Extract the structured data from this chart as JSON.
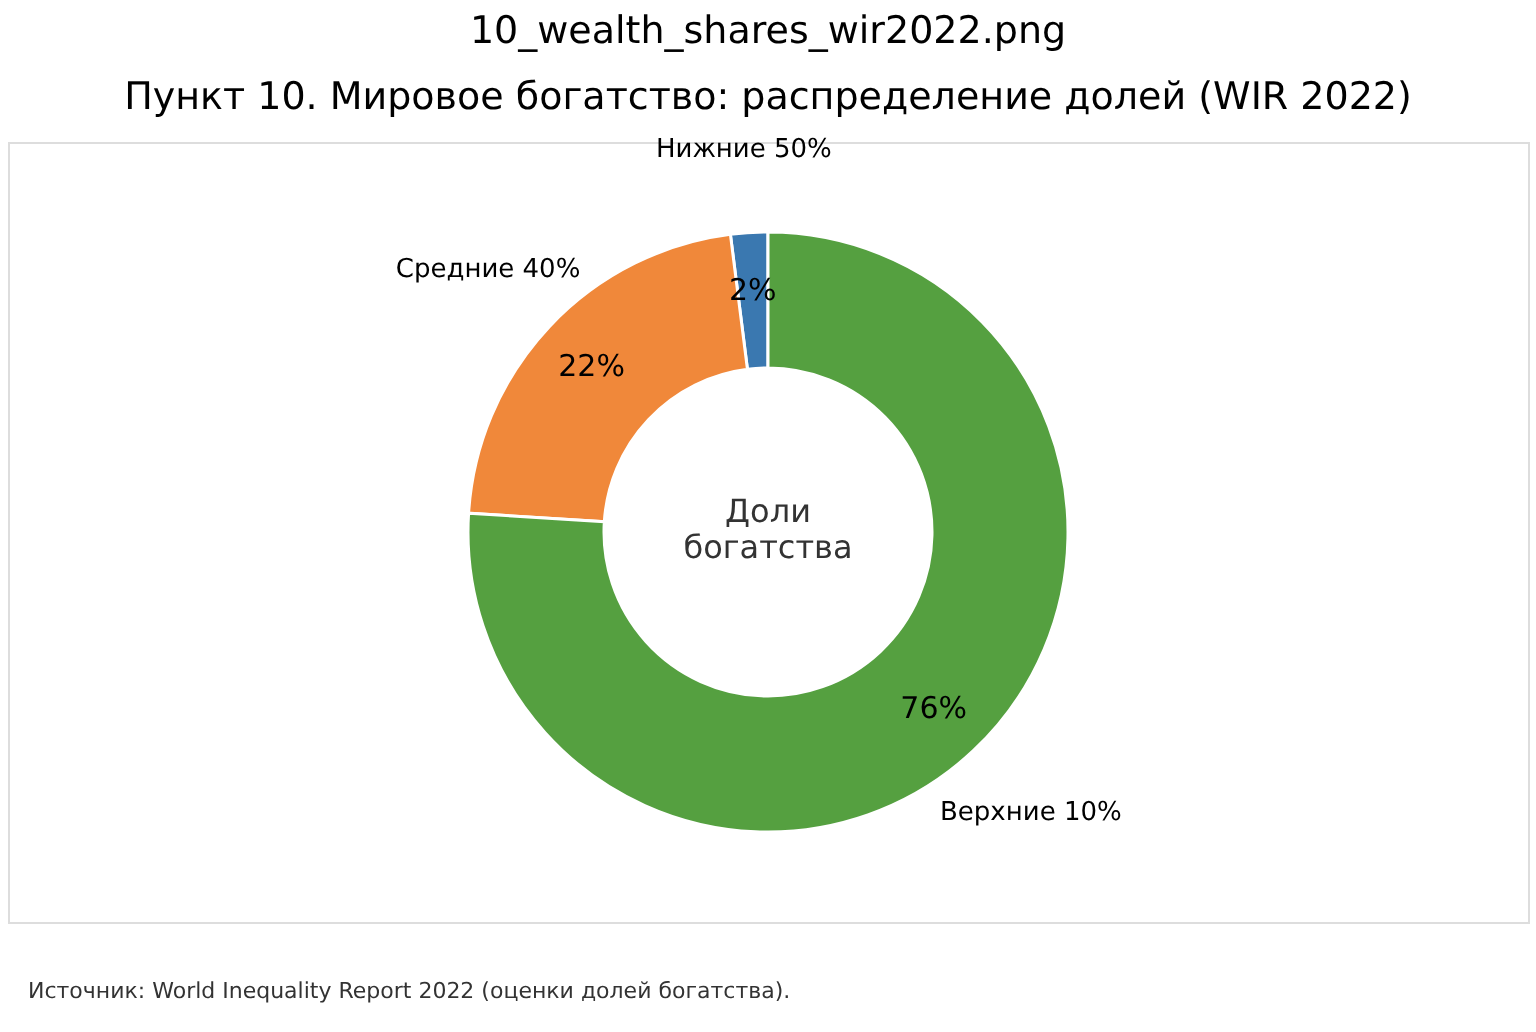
{
  "chart_data": {
    "type": "donut",
    "title": "10_wealth_shares_wir2022.png",
    "subtitle": "Пункт 10. Мировое богатство: распределение долей (WIR 2022)",
    "categories": [
      "Нижние 50%",
      "Средние 40%",
      "Верхние 10%"
    ],
    "values": [
      2,
      22,
      76
    ],
    "colors": [
      "#3a78b0",
      "#f0883a",
      "#55a040"
    ],
    "value_labels": [
      "2%",
      "22%",
      "76%"
    ],
    "annotations": [
      "Доли\nбогатства",
      "Источник: World Inequality Report 2022 (оценки долей богатства)."
    ]
  }
}
